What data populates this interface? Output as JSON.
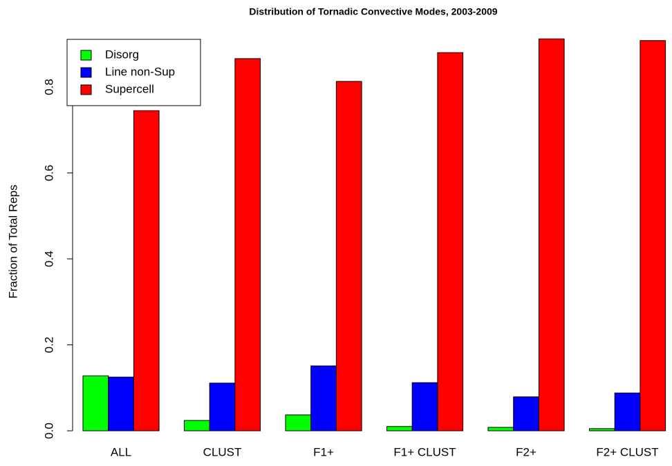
{
  "chart_data": {
    "type": "bar",
    "title": "Distribution of Tornadic Convective Modes, 2003-2009",
    "y_label": "Fraction of Total Reps",
    "categories": [
      "ALL",
      "CLUST",
      "F1+",
      "F1+ CLUST",
      "F2+",
      "F2+ CLUST"
    ],
    "series": [
      {
        "name": "Disorg",
        "color": "#00ff00",
        "values": [
          0.128,
          0.024,
          0.037,
          0.01,
          0.008,
          0.005
        ]
      },
      {
        "name": "Line non-Sup",
        "color": "#0000ff",
        "values": [
          0.125,
          0.111,
          0.151,
          0.112,
          0.079,
          0.088
        ]
      },
      {
        "name": "Supercell",
        "color": "#ff0000",
        "values": [
          0.745,
          0.866,
          0.813,
          0.88,
          0.912,
          0.908
        ]
      }
    ],
    "ylim": [
      0,
      0.9
    ],
    "yticks": [
      {
        "value": 0,
        "label": "0.0"
      },
      0.2,
      0.4,
      0.6,
      0.8
    ],
    "legend": "top-left"
  }
}
